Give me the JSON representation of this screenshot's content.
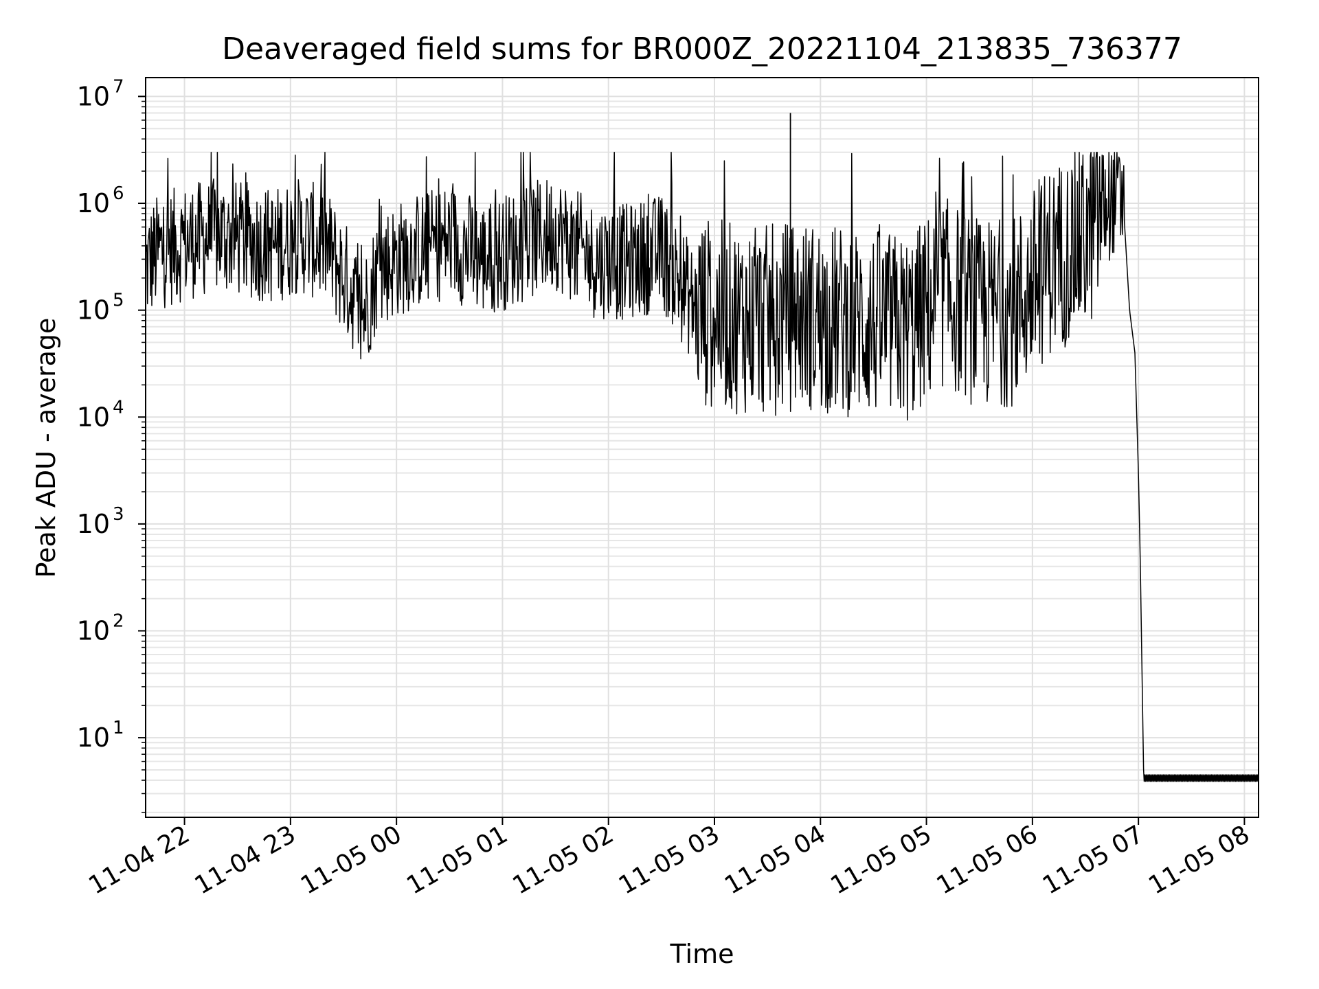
{
  "chart_data": {
    "type": "line",
    "title": "Deaveraged field sums for BR000Z_20221104_213835_736377",
    "xlabel": "Time",
    "ylabel": "Peak ADU - average",
    "yscale": "log",
    "ylim": [
      1.8,
      15000000
    ],
    "xlim": [
      "2022-11-04 21:38",
      "2022-11-05 08:08"
    ],
    "grid": true,
    "grid_minor": true,
    "line_color": "#000000",
    "x_ticks": [
      {
        "value": "2022-11-04 22:00",
        "label": "11-04 22"
      },
      {
        "value": "2022-11-04 23:00",
        "label": "11-04 23"
      },
      {
        "value": "2022-11-05 00:00",
        "label": "11-05 00"
      },
      {
        "value": "2022-11-05 01:00",
        "label": "11-05 01"
      },
      {
        "value": "2022-11-05 02:00",
        "label": "11-05 02"
      },
      {
        "value": "2022-11-05 03:00",
        "label": "11-05 03"
      },
      {
        "value": "2022-11-05 04:00",
        "label": "11-05 04"
      },
      {
        "value": "2022-11-05 05:00",
        "label": "11-05 05"
      },
      {
        "value": "2022-11-05 06:00",
        "label": "11-05 06"
      },
      {
        "value": "2022-11-05 07:00",
        "label": "11-05 07"
      },
      {
        "value": "2022-11-05 08:00",
        "label": "11-05 08"
      }
    ],
    "y_ticks": [
      {
        "value": 10,
        "base": "10",
        "exp": "1"
      },
      {
        "value": 100,
        "base": "10",
        "exp": "2"
      },
      {
        "value": 1000,
        "base": "10",
        "exp": "3"
      },
      {
        "value": 10000,
        "base": "10",
        "exp": "4"
      },
      {
        "value": 100000,
        "base": "10",
        "exp": "5"
      },
      {
        "value": 1000000,
        "base": "10",
        "exp": "6"
      },
      {
        "value": 10000000,
        "base": "10",
        "exp": "7"
      }
    ],
    "series": [
      {
        "x": [
          "2022-11-04 21:38",
          "2022-11-04 21:45",
          "2022-11-04 21:55",
          "2022-11-04 22:05",
          "2022-11-04 22:20",
          "2022-11-04 22:35",
          "2022-11-04 22:50",
          "2022-11-04 23:05",
          "2022-11-04 23:20",
          "2022-11-04 23:35",
          "2022-11-04 23:40",
          "2022-11-04 23:50",
          "2022-11-05 00:10",
          "2022-11-05 00:30",
          "2022-11-05 00:50",
          "2022-11-05 01:10",
          "2022-11-05 01:30",
          "2022-11-05 01:50",
          "2022-11-05 02:10",
          "2022-11-05 02:30",
          "2022-11-05 02:50",
          "2022-11-05 03:10",
          "2022-11-05 03:30",
          "2022-11-05 03:50",
          "2022-11-05 04:10",
          "2022-11-05 04:30",
          "2022-11-05 04:50",
          "2022-11-05 05:10",
          "2022-11-05 05:30",
          "2022-11-05 05:50",
          "2022-11-05 06:10",
          "2022-11-05 06:30",
          "2022-11-05 06:40",
          "2022-11-05 06:48",
          "2022-11-05 06:52",
          "2022-11-05 06:55",
          "2022-11-05 06:58",
          "2022-11-05 07:00",
          "2022-11-05 07:01",
          "2022-11-05 07:03",
          "2022-11-05 07:30",
          "2022-11-05 08:08"
        ],
        "y": [
          250000,
          350000,
          400000,
          450000,
          500000,
          450000,
          400000,
          500000,
          400000,
          150000,
          80000,
          250000,
          350000,
          450000,
          300000,
          400000,
          550000,
          300000,
          280000,
          350000,
          100000,
          85000,
          80000,
          90000,
          80000,
          75000,
          65000,
          150000,
          90000,
          100000,
          300000,
          450000,
          900000,
          1200000,
          700000,
          100000,
          40000,
          3000,
          500,
          4,
          4,
          4
        ]
      }
    ],
    "annotations": [
      {
        "x": "2022-11-05 03:43",
        "y": 7000000,
        "text": ""
      }
    ]
  }
}
